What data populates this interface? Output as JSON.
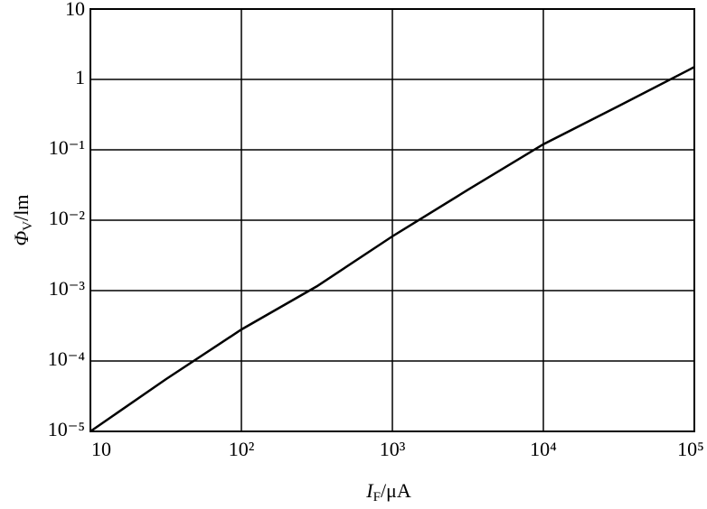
{
  "chart_data": {
    "type": "line",
    "log_x": true,
    "log_y": true,
    "grid": true,
    "x_label": {
      "symbol": "I",
      "subscript": "F",
      "unit": "/μA"
    },
    "y_label": {
      "symbol": "Φ",
      "subscript": "V",
      "unit": "/lm"
    },
    "x": [
      10,
      31.6,
      100,
      316,
      1000,
      3162,
      10000,
      31623,
      100000
    ],
    "series": [
      {
        "color": "#000000",
        "values": [
          1e-05,
          5.5e-05,
          0.00028,
          0.00115,
          0.0059,
          0.027,
          0.12,
          0.42,
          1.5
        ]
      }
    ],
    "xlim": [
      10,
      100000
    ],
    "xticks": [
      10,
      {
        "value": 100,
        "label": "10²"
      },
      {
        "value": 1000,
        "label": "10³"
      },
      {
        "value": 10000,
        "label": "10⁴"
      },
      {
        "value": 100000,
        "label": "10⁵"
      }
    ],
    "ylim": [
      1e-05,
      10
    ],
    "yticks": [
      {
        "value": 1e-05,
        "label": "10⁻⁵"
      },
      {
        "value": 0.0001,
        "label": "10⁻⁴"
      },
      {
        "value": 0.001,
        "label": "10⁻³"
      },
      {
        "value": 0.01,
        "label": "10⁻²"
      },
      {
        "value": 0.1,
        "label": "10⁻¹"
      },
      1,
      10
    ]
  }
}
